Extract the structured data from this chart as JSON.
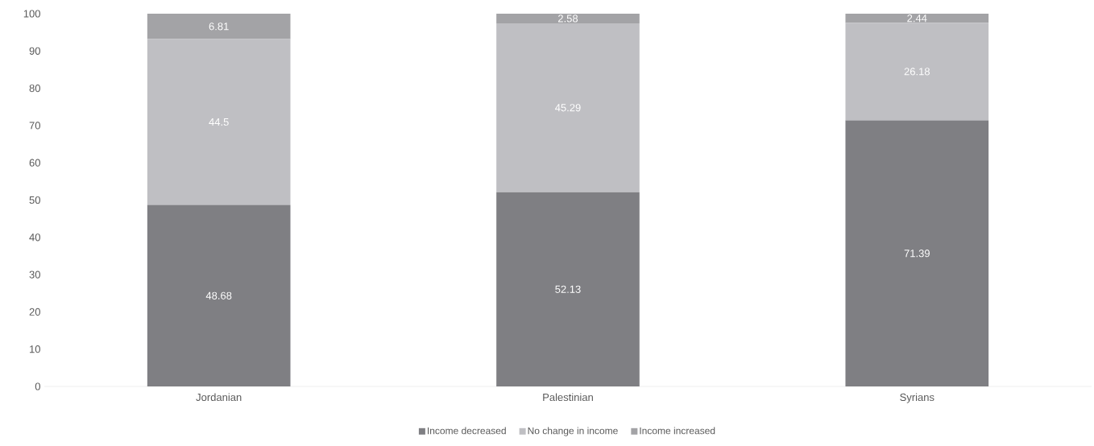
{
  "chart_data": {
    "type": "bar",
    "stacked": true,
    "categories": [
      "Jordanian",
      "Palestinian",
      "Syrians"
    ],
    "series": [
      {
        "name": "Income decreased",
        "color": "#7f7f83",
        "values": [
          48.68,
          52.13,
          71.39
        ]
      },
      {
        "name": "No change in income",
        "color": "#bfbfc3",
        "values": [
          44.5,
          45.29,
          26.18
        ]
      },
      {
        "name": "Income increased",
        "color": "#a3a3a6",
        "values": [
          6.81,
          2.58,
          2.44
        ]
      }
    ],
    "ylim": [
      0,
      100
    ],
    "yticks": [
      0,
      10,
      20,
      30,
      40,
      50,
      60,
      70,
      80,
      90,
      100
    ],
    "data_labels": true,
    "legend": "bottom"
  }
}
